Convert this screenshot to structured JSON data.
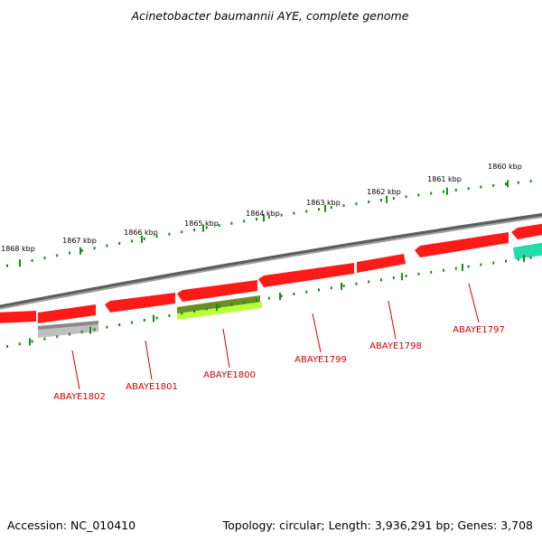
{
  "title": "Acinetobacter baumannii AYE, complete genome",
  "footer": {
    "accession": "Accession: NC_010410",
    "summary": "Topology: circular; Length: 3,936,291 bp; Genes: 3,708"
  },
  "colors": {
    "backbone": "#7a7a7a",
    "tick": "#1a8a1a",
    "forward_gene": "#ff0000",
    "label": "#d40000",
    "grey_feature": "#b8b8b8",
    "olive_feature": "#6b8e23",
    "lime_feature": "#b8ff3a",
    "teal_feature": "#22ddaa"
  },
  "scale_labels": [
    "1868 kbp",
    "1867 kbp",
    "1866 kbp",
    "1865 kbp",
    "1864 kbp",
    "1863 kbp",
    "1862 kbp",
    "1861 kbp",
    "1860 kbp"
  ],
  "genes": [
    {
      "name": "ABAYE1802"
    },
    {
      "name": "ABAYE1801"
    },
    {
      "name": "ABAYE1800"
    },
    {
      "name": "ABAYE1799"
    },
    {
      "name": "ABAYE1798"
    },
    {
      "name": "ABAYE1797"
    }
  ]
}
